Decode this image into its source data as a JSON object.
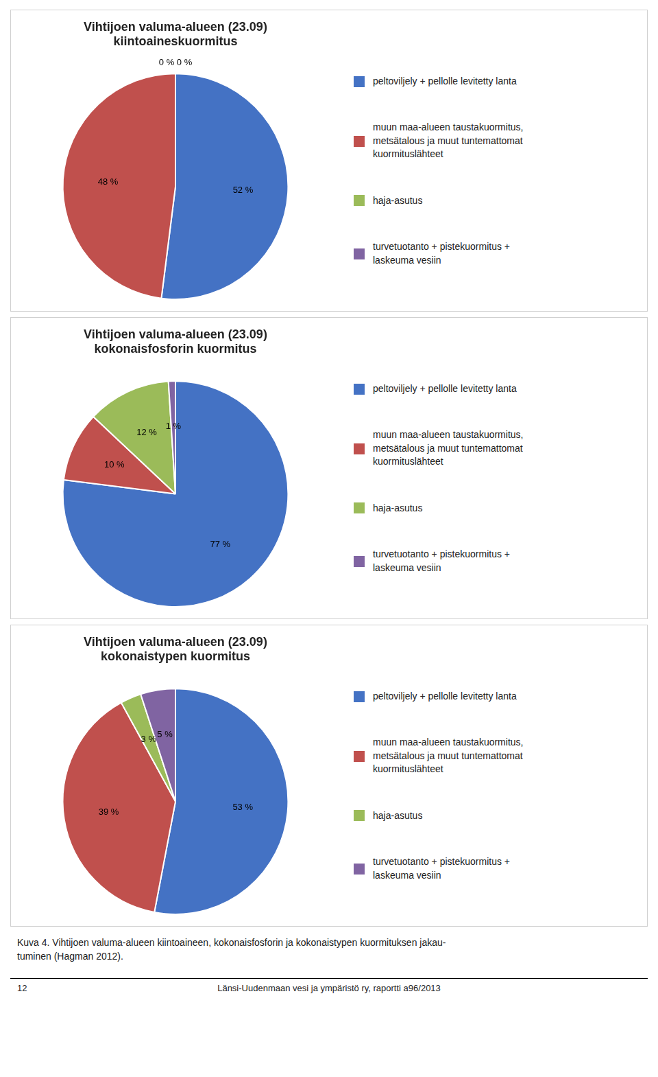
{
  "chart_data": [
    {
      "type": "pie",
      "title": [
        "Vihtijoen valuma-alueen (23.09)",
        "kiintoaineskuormitus"
      ],
      "categories": [
        "peltoviljely + pellolle levitetty lanta",
        "muun maa-alueen taustakuormitus,\nmetsätalous ja muut tuntemattomat\nkuormituslähteet",
        "haja-asutus",
        "turvetuotanto + pistekuormitus +\nlaskeuma vesiin"
      ],
      "values": [
        52,
        48,
        0,
        0
      ],
      "value_labels": [
        "52 %",
        "48 %",
        "0 %",
        "0 %"
      ],
      "colors": [
        "#4472C4",
        "#C0504D",
        "#9BBB59",
        "#8064A2"
      ],
      "data_labels": true,
      "legend": "right"
    },
    {
      "type": "pie",
      "title": [
        "Vihtijoen valuma-alueen (23.09)",
        "kokonaisfosforin kuormitus"
      ],
      "categories": [
        "peltoviljely + pellolle levitetty lanta",
        "muun maa-alueen taustakuormitus,\nmetsätalous ja muut tuntemattomat\nkuormituslähteet",
        "haja-asutus",
        "turvetuotanto + pistekuormitus +\nlaskeuma vesiin"
      ],
      "values": [
        77,
        10,
        12,
        1
      ],
      "value_labels": [
        "77 %",
        "10 %",
        "12 %",
        "1 %"
      ],
      "colors": [
        "#4472C4",
        "#C0504D",
        "#9BBB59",
        "#8064A2"
      ],
      "data_labels": true,
      "legend": "right"
    },
    {
      "type": "pie",
      "title": [
        "Vihtijoen valuma-alueen (23.09)",
        "kokonaistypen kuormitus"
      ],
      "categories": [
        "peltoviljely + pellolle levitetty lanta",
        "muun maa-alueen taustakuormitus,\nmetsätalous ja muut tuntemattomat\nkuormituslähteet",
        "haja-asutus",
        "turvetuotanto + pistekuormitus +\nlaskeuma vesiin"
      ],
      "values": [
        53,
        39,
        3,
        5
      ],
      "value_labels": [
        "53 %",
        "39 %",
        "3 %",
        "5 %"
      ],
      "colors": [
        "#4472C4",
        "#C0504D",
        "#9BBB59",
        "#8064A2"
      ],
      "data_labels": true,
      "legend": "right"
    }
  ],
  "caption": "Kuva 4.  Vihtijoen valuma-alueen kiintoaineen, kokonaisfosforin ja kokonaistypen kuormituksen jakau-\ntuminen (Hagman 2012).",
  "page_footer": [
    "12",
    "Länsi-Uudenmaan vesi ja ympäristö ry, raportti a96/2013"
  ]
}
